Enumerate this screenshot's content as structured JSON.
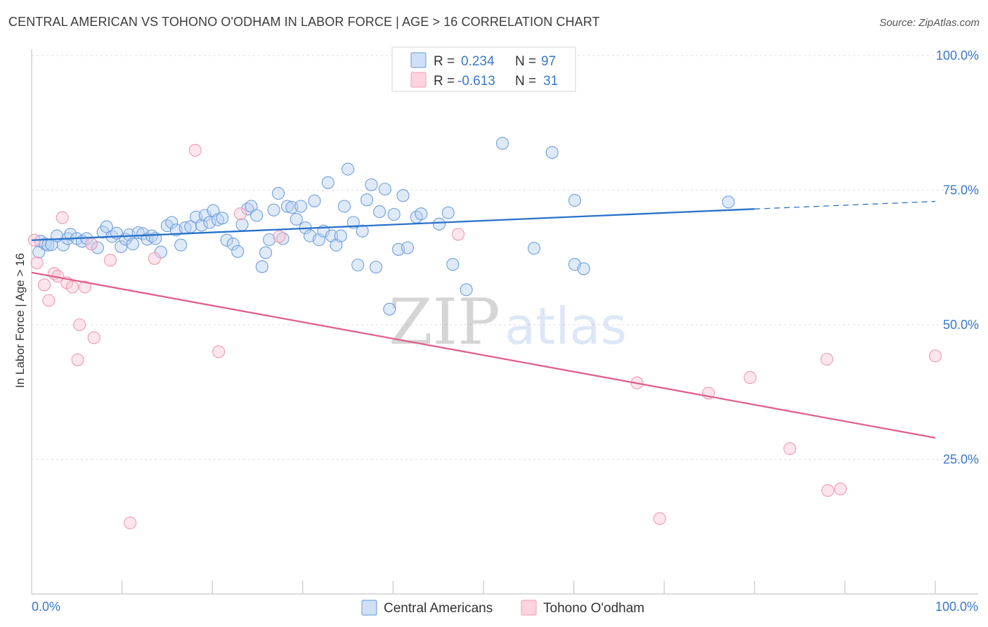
{
  "header": {
    "title": "CENTRAL AMERICAN VS TOHONO O'ODHAM IN LABOR FORCE | AGE > 16 CORRELATION CHART",
    "source": "Source: ZipAtlas.com"
  },
  "watermark": {
    "zip": "ZIP",
    "atlas": "atlas"
  },
  "legend_top": [
    {
      "r_label": "R =",
      "r_value": "0.234",
      "n_label": "N =",
      "n_value": "97"
    },
    {
      "r_label": "R =",
      "r_value": "-0.613",
      "n_label": "N =",
      "n_value": "31"
    }
  ],
  "chart_data": {
    "type": "scatter",
    "title": "CENTRAL AMERICAN VS TOHONO O'ODHAM IN LABOR FORCE | AGE > 16 CORRELATION CHART",
    "xlabel": "",
    "ylabel": "In Labor Force | Age > 16",
    "xlim": [
      0,
      100
    ],
    "ylim": [
      0,
      100
    ],
    "x_tick_labels": [
      "0.0%",
      "100.0%"
    ],
    "y_ticks": [
      {
        "value": 25,
        "label": "25.0%"
      },
      {
        "value": 50,
        "label": "50.0%"
      },
      {
        "value": 75,
        "label": "75.0%"
      },
      {
        "value": 100,
        "label": "100.0%"
      }
    ],
    "grid": "horizontal dashed",
    "legend_position": "bottom",
    "series": [
      {
        "name": "Central Americans",
        "color": "#7aa6e0",
        "line_color": "#2872c9",
        "r": 0.234,
        "n": 97,
        "trend": {
          "x0": 0,
          "y0": 65.7,
          "x1": 80,
          "y1": 71.5,
          "dashed_to_x": 100,
          "dashed_to_y": 72.9
        },
        "points": [
          [
            0.8,
            63.5
          ],
          [
            1.0,
            65.5
          ],
          [
            1.5,
            65.0
          ],
          [
            1.8,
            64.8
          ],
          [
            2.2,
            64.9
          ],
          [
            2.8,
            66.5
          ],
          [
            3.5,
            64.8
          ],
          [
            4.0,
            66.0
          ],
          [
            4.3,
            66.8
          ],
          [
            5.0,
            66.0
          ],
          [
            5.6,
            65.5
          ],
          [
            6.1,
            66.0
          ],
          [
            6.6,
            65.0
          ],
          [
            7.3,
            64.3
          ],
          [
            7.9,
            67.2
          ],
          [
            8.3,
            68.2
          ],
          [
            8.9,
            66.4
          ],
          [
            9.4,
            67.0
          ],
          [
            9.9,
            64.5
          ],
          [
            10.4,
            65.9
          ],
          [
            10.8,
            66.7
          ],
          [
            11.2,
            65.0
          ],
          [
            11.8,
            67.1
          ],
          [
            12.3,
            66.9
          ],
          [
            12.8,
            65.9
          ],
          [
            13.3,
            66.5
          ],
          [
            13.7,
            66.0
          ],
          [
            14.3,
            63.5
          ],
          [
            15.0,
            68.4
          ],
          [
            15.5,
            69.0
          ],
          [
            16.0,
            67.6
          ],
          [
            16.5,
            64.8
          ],
          [
            17.0,
            68.0
          ],
          [
            17.6,
            68.2
          ],
          [
            18.2,
            70.0
          ],
          [
            18.8,
            68.5
          ],
          [
            19.2,
            70.3
          ],
          [
            19.7,
            69.0
          ],
          [
            20.1,
            71.2
          ],
          [
            20.6,
            69.5
          ],
          [
            21.1,
            69.8
          ],
          [
            21.6,
            65.7
          ],
          [
            22.3,
            65.0
          ],
          [
            22.8,
            63.6
          ],
          [
            23.3,
            68.6
          ],
          [
            23.9,
            71.5
          ],
          [
            24.3,
            72.0
          ],
          [
            24.9,
            70.3
          ],
          [
            25.5,
            60.8
          ],
          [
            25.9,
            63.4
          ],
          [
            26.3,
            65.8
          ],
          [
            26.8,
            71.3
          ],
          [
            27.3,
            74.4
          ],
          [
            27.8,
            66.0
          ],
          [
            28.3,
            72.0
          ],
          [
            28.8,
            71.8
          ],
          [
            29.3,
            69.6
          ],
          [
            29.8,
            72.0
          ],
          [
            30.3,
            68.0
          ],
          [
            30.8,
            66.5
          ],
          [
            31.3,
            73.0
          ],
          [
            31.8,
            65.8
          ],
          [
            32.3,
            67.4
          ],
          [
            32.8,
            76.4
          ],
          [
            33.2,
            66.5
          ],
          [
            33.7,
            64.8
          ],
          [
            34.2,
            66.5
          ],
          [
            34.6,
            72.0
          ],
          [
            35.0,
            78.9
          ],
          [
            35.6,
            69.0
          ],
          [
            36.1,
            61.1
          ],
          [
            36.6,
            67.4
          ],
          [
            37.1,
            73.2
          ],
          [
            37.6,
            76.0
          ],
          [
            38.1,
            60.7
          ],
          [
            38.5,
            71.0
          ],
          [
            39.1,
            75.2
          ],
          [
            39.6,
            52.9
          ],
          [
            40.1,
            70.5
          ],
          [
            40.6,
            64.0
          ],
          [
            41.1,
            74.0
          ],
          [
            41.6,
            64.3
          ],
          [
            42.6,
            70.0
          ],
          [
            43.1,
            70.6
          ],
          [
            45.1,
            68.7
          ],
          [
            46.1,
            70.8
          ],
          [
            46.6,
            61.2
          ],
          [
            48.1,
            56.5
          ],
          [
            52.1,
            83.7
          ],
          [
            55.6,
            64.2
          ],
          [
            57.6,
            82.0
          ],
          [
            60.1,
            73.1
          ],
          [
            60.1,
            61.2
          ],
          [
            61.1,
            60.4
          ],
          [
            77.1,
            72.8
          ]
        ]
      },
      {
        "name": "Tohono O'odham",
        "color": "#f4a9bf",
        "line_color": "#e0608e",
        "r": -0.613,
        "n": 31,
        "trend": {
          "x0": 0,
          "y0": 59.7,
          "x1": 100,
          "y1": 29.0
        },
        "points": [
          [
            0.3,
            65.7
          ],
          [
            0.6,
            61.5
          ],
          [
            1.4,
            57.4
          ],
          [
            1.9,
            54.5
          ],
          [
            2.5,
            59.5
          ],
          [
            2.9,
            59.0
          ],
          [
            3.4,
            69.9
          ],
          [
            3.9,
            57.8
          ],
          [
            4.5,
            57.0
          ],
          [
            5.1,
            43.5
          ],
          [
            5.3,
            50.0
          ],
          [
            5.9,
            57.0
          ],
          [
            6.6,
            65.0
          ],
          [
            6.9,
            47.6
          ],
          [
            8.7,
            62.0
          ],
          [
            10.9,
            13.2
          ],
          [
            13.6,
            62.3
          ],
          [
            18.1,
            82.4
          ],
          [
            20.7,
            45.0
          ],
          [
            23.1,
            70.6
          ],
          [
            27.4,
            66.4
          ],
          [
            47.2,
            66.8
          ],
          [
            67.0,
            39.2
          ],
          [
            69.5,
            14.0
          ],
          [
            74.9,
            37.3
          ],
          [
            79.5,
            40.2
          ],
          [
            83.9,
            27.0
          ],
          [
            88.0,
            43.6
          ],
          [
            88.1,
            19.2
          ],
          [
            89.5,
            19.5
          ],
          [
            100.0,
            44.2
          ]
        ]
      }
    ]
  }
}
